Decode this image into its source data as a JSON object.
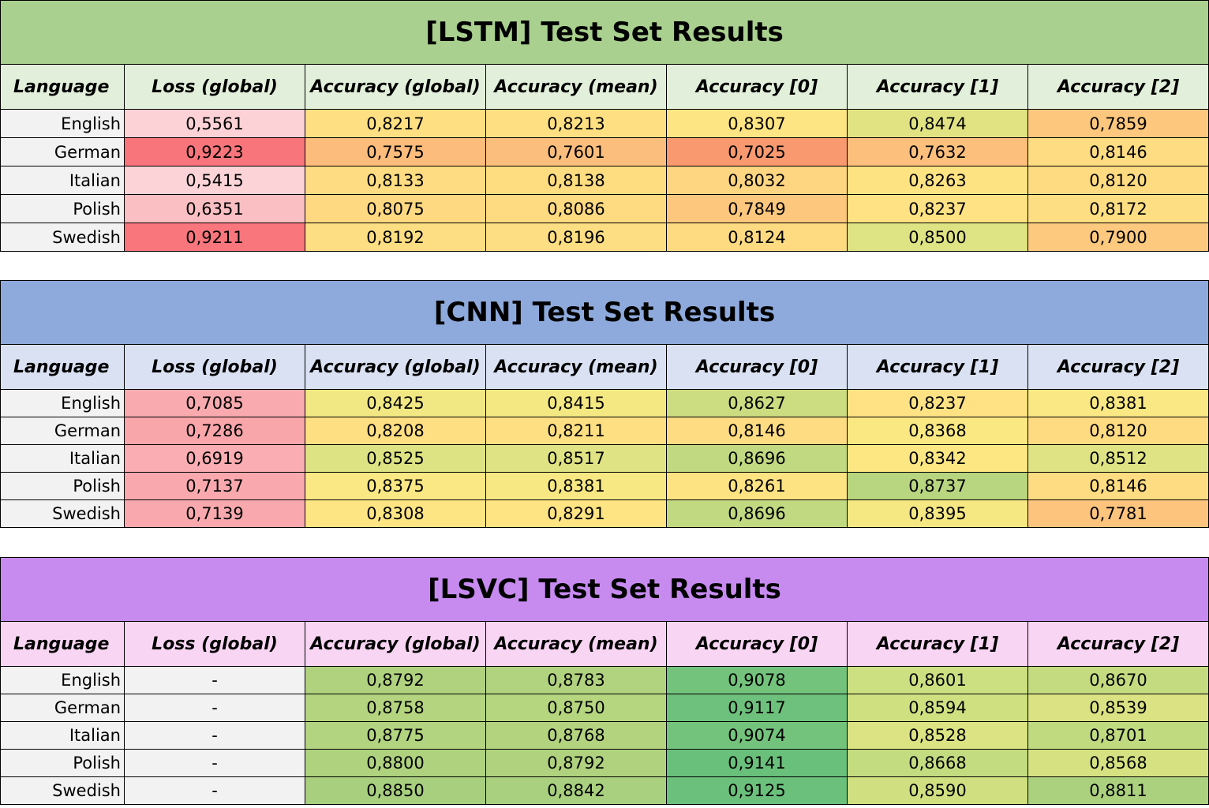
{
  "columns": [
    "Language",
    "Loss (global)",
    "Accuracy (global)",
    "Accuracy (mean)",
    "Accuracy [0]",
    "Accuracy [1]",
    "Accuracy [2]"
  ],
  "tables": [
    {
      "title": "[LSTM] Test Set Results",
      "rows": [
        {
          "lang": "English",
          "values": [
            "0,5561",
            "0,8217",
            "0,8213",
            "0,8307",
            "0,8474",
            "0,7859"
          ],
          "colors": [
            "#fcd2d6",
            "#fee083",
            "#fee083",
            "#fee583",
            "#e1e383",
            "#fdc77d"
          ]
        },
        {
          "lang": "German",
          "values": [
            "0,9223",
            "0,7575",
            "0,7601",
            "0,7025",
            "0,7632",
            "0,8146"
          ],
          "colors": [
            "#f8757b",
            "#fcbc7b",
            "#fcbe7c",
            "#f9996f",
            "#fcbf7c",
            "#fedc81"
          ]
        },
        {
          "lang": "Italian",
          "values": [
            "0,5415",
            "0,8133",
            "0,8138",
            "0,8032",
            "0,8263",
            "0,8120"
          ],
          "colors": [
            "#fcd4d8",
            "#fedc81",
            "#fedd81",
            "#fed580",
            "#fee383",
            "#fedb81"
          ]
        },
        {
          "lang": "Polish",
          "values": [
            "0,6351",
            "0,8075",
            "0,8086",
            "0,7849",
            "0,8237",
            "0,8172"
          ],
          "colors": [
            "#fabfc3",
            "#fed981",
            "#feda81",
            "#fdc77d",
            "#fee283",
            "#fede82"
          ]
        },
        {
          "lang": "Swedish",
          "values": [
            "0,9211",
            "0,8192",
            "0,8196",
            "0,8124",
            "0,8500",
            "0,7900"
          ],
          "colors": [
            "#f8767c",
            "#fede82",
            "#fede82",
            "#fedb81",
            "#dee383",
            "#fdc97e"
          ]
        }
      ]
    },
    {
      "title": "[CNN] Test Set Results",
      "rows": [
        {
          "lang": "English",
          "values": [
            "0,7085",
            "0,8425",
            "0,8415",
            "0,8627",
            "0,8237",
            "0,8381"
          ],
          "colors": [
            "#f9aaaf",
            "#f2e883",
            "#f4e883",
            "#cbdc81",
            "#fee283",
            "#f9e883"
          ]
        },
        {
          "lang": "German",
          "values": [
            "0,7286",
            "0,8208",
            "0,8211",
            "0,8146",
            "0,8368",
            "0,8120"
          ],
          "colors": [
            "#f9a6ab",
            "#fedf82",
            "#fedf82",
            "#fedc81",
            "#fae883",
            "#fedb81"
          ]
        },
        {
          "lang": "Italian",
          "values": [
            "0,6919",
            "0,8525",
            "0,8517",
            "0,8696",
            "0,8342",
            "0,8512"
          ],
          "colors": [
            "#faadb2",
            "#dde383",
            "#dfe383",
            "#c1d980",
            "#fde783",
            "#dfe383"
          ]
        },
        {
          "lang": "Polish",
          "values": [
            "0,7137",
            "0,8375",
            "0,8381",
            "0,8261",
            "0,8737",
            "0,8146"
          ],
          "colors": [
            "#f9a9ae",
            "#f9e883",
            "#f8e883",
            "#fee383",
            "#b8d57f",
            "#fedc81"
          ]
        },
        {
          "lang": "Swedish",
          "values": [
            "0,7139",
            "0,8308",
            "0,8291",
            "0,8696",
            "0,8395",
            "0,7781"
          ],
          "colors": [
            "#f9a9ae",
            "#fee583",
            "#fee483",
            "#c1d980",
            "#f5e883",
            "#fdc47d"
          ]
        }
      ]
    },
    {
      "title": "[LSVC] Test Set Results",
      "rows": [
        {
          "lang": "English",
          "values": [
            "-",
            "0,8792",
            "0,8783",
            "0,9078",
            "0,8601",
            "0,8670"
          ],
          "colors": [
            "#f2f2f2",
            "#b0d27f",
            "#b1d27f",
            "#73c37c",
            "#cde081",
            "#c4db80"
          ]
        },
        {
          "lang": "German",
          "values": [
            "-",
            "0,8758",
            "0,8750",
            "0,9117",
            "0,8594",
            "0,8539"
          ],
          "colors": [
            "#f2f2f2",
            "#b4d47f",
            "#b5d57f",
            "#6dc17c",
            "#cfe081",
            "#dae283"
          ]
        },
        {
          "lang": "Italian",
          "values": [
            "-",
            "0,8775",
            "0,8768",
            "0,9074",
            "0,8528",
            "0,8701"
          ],
          "colors": [
            "#f2f2f2",
            "#b2d37f",
            "#b3d37f",
            "#74c37c",
            "#dce383",
            "#c0da80"
          ]
        },
        {
          "lang": "Polish",
          "values": [
            "-",
            "0,8800",
            "0,8792",
            "0,9141",
            "0,8668",
            "0,8568"
          ],
          "colors": [
            "#f2f2f2",
            "#afd27f",
            "#b0d27f",
            "#69c07b",
            "#c4dc80",
            "#d6e282"
          ]
        },
        {
          "lang": "Swedish",
          "values": [
            "-",
            "0,8850",
            "0,8842",
            "0,9125",
            "0,8590",
            "0,8811"
          ],
          "colors": [
            "#f2f2f2",
            "#a8cf7e",
            "#a9d07e",
            "#6bc17c",
            "#d0e081",
            "#acd17e"
          ]
        }
      ]
    }
  ]
}
